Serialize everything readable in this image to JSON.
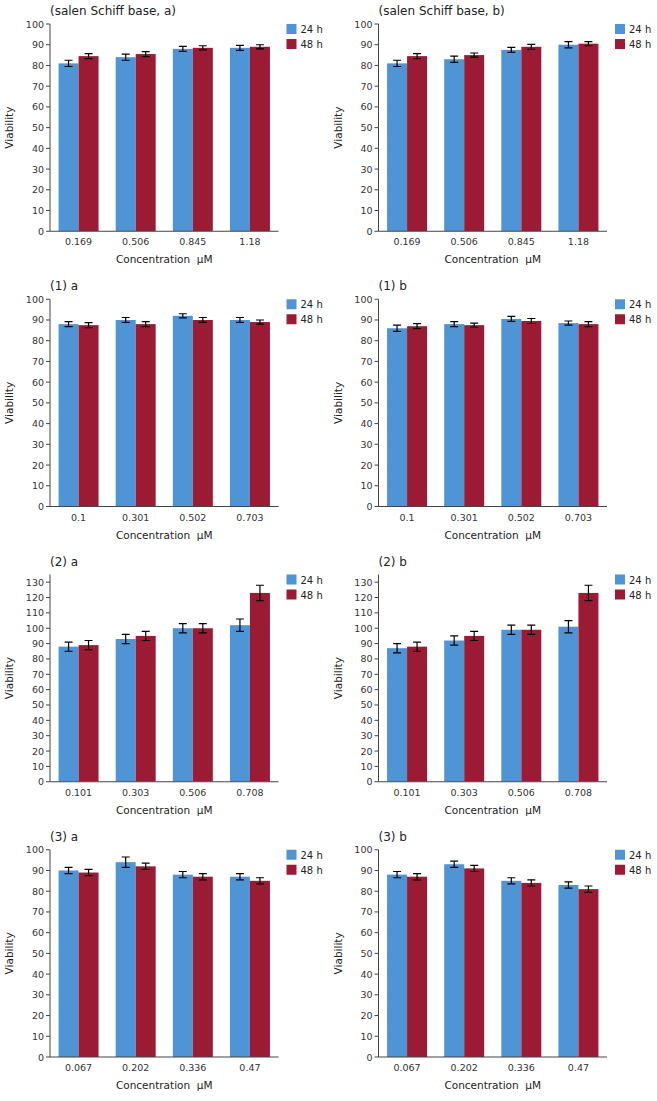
{
  "chart_data": [
    {
      "type": "bar",
      "title": "(salen Schiff base, a)",
      "categories": [
        "0.169",
        "0.506",
        "0.845",
        "1.18"
      ],
      "series": [
        {
          "name": "24 h",
          "color": "#4f94d4",
          "values": [
            81,
            84,
            88,
            88.5
          ],
          "errors": [
            1.5,
            1.5,
            1.2,
            1.2
          ]
        },
        {
          "name": "48 h",
          "color": "#9b1b34",
          "values": [
            84.5,
            85.5,
            88.5,
            89
          ],
          "errors": [
            1.2,
            1.2,
            1.0,
            1.0
          ]
        }
      ],
      "xlabel": "Concentration  μM",
      "ylabel": "Viability",
      "ylim": [
        0,
        100
      ],
      "yticks": [
        0,
        10,
        20,
        30,
        40,
        50,
        60,
        70,
        80,
        90,
        100
      ],
      "grid": false,
      "legend": "upper right"
    },
    {
      "type": "bar",
      "title": "(salen Schiff base, b)",
      "categories": [
        "0.169",
        "0.506",
        "0.845",
        "1.18"
      ],
      "series": [
        {
          "name": "24 h",
          "color": "#4f94d4",
          "values": [
            81,
            83,
            87.5,
            90
          ],
          "errors": [
            1.5,
            1.5,
            1.2,
            1.5
          ]
        },
        {
          "name": "48 h",
          "color": "#9b1b34",
          "values": [
            84.5,
            85,
            89,
            90.5
          ],
          "errors": [
            1.2,
            1.0,
            1.2,
            1.0
          ]
        }
      ],
      "xlabel": "Concentration  μM",
      "ylabel": "Viability",
      "ylim": [
        0,
        100
      ],
      "yticks": [
        0,
        10,
        20,
        30,
        40,
        50,
        60,
        70,
        80,
        90,
        100
      ],
      "grid": false,
      "legend": "upper right"
    },
    {
      "type": "bar",
      "title": "(1) a",
      "categories": [
        "0.1",
        "0.301",
        "0.502",
        "0.703"
      ],
      "series": [
        {
          "name": "24 h",
          "color": "#4f94d4",
          "values": [
            88,
            90,
            92,
            90
          ],
          "errors": [
            1.2,
            1.2,
            1.0,
            1.2
          ]
        },
        {
          "name": "48 h",
          "color": "#9b1b34",
          "values": [
            87.5,
            88,
            90,
            89
          ],
          "errors": [
            1.2,
            1.2,
            1.2,
            1.0
          ]
        }
      ],
      "xlabel": "Concentration  μM",
      "ylabel": "Viability",
      "ylim": [
        0,
        100
      ],
      "yticks": [
        0,
        10,
        20,
        30,
        40,
        50,
        60,
        70,
        80,
        90,
        100
      ],
      "grid": false,
      "legend": "upper right"
    },
    {
      "type": "bar",
      "title": "(1) b",
      "categories": [
        "0.1",
        "0.301",
        "0.502",
        "0.703"
      ],
      "series": [
        {
          "name": "24 h",
          "color": "#4f94d4",
          "values": [
            86,
            88,
            90.5,
            88.5
          ],
          "errors": [
            1.5,
            1.2,
            1.2,
            1.0
          ]
        },
        {
          "name": "48 h",
          "color": "#9b1b34",
          "values": [
            87,
            87.5,
            89.5,
            88
          ],
          "errors": [
            1.2,
            1.0,
            1.2,
            1.2
          ]
        }
      ],
      "xlabel": "Concentration  μM",
      "ylabel": "Viability",
      "ylim": [
        0,
        100
      ],
      "yticks": [
        0,
        10,
        20,
        30,
        40,
        50,
        60,
        70,
        80,
        90,
        100
      ],
      "grid": false,
      "legend": "upper right"
    },
    {
      "type": "bar",
      "title": "(2) a",
      "categories": [
        "0.101",
        "0.303",
        "0.506",
        "0.708"
      ],
      "series": [
        {
          "name": "24 h",
          "color": "#4f94d4",
          "values": [
            88,
            93,
            100,
            102
          ],
          "errors": [
            3.0,
            3.0,
            3.0,
            4.0
          ]
        },
        {
          "name": "48 h",
          "color": "#9b1b34",
          "values": [
            89,
            95,
            100,
            123
          ],
          "errors": [
            3.0,
            3.0,
            3.0,
            5.0
          ]
        }
      ],
      "xlabel": "Concentration  μM",
      "ylabel": "Viability",
      "ylim": [
        0,
        135
      ],
      "yticks": [
        0,
        10,
        20,
        30,
        40,
        50,
        60,
        70,
        80,
        90,
        100,
        110,
        120,
        130
      ],
      "grid": false,
      "legend": "upper right"
    },
    {
      "type": "bar",
      "title": "(2) b",
      "categories": [
        "0.101",
        "0.303",
        "0.506",
        "0.708"
      ],
      "series": [
        {
          "name": "24 h",
          "color": "#4f94d4",
          "values": [
            87,
            92,
            99,
            101
          ],
          "errors": [
            3.0,
            3.0,
            3.0,
            4.0
          ]
        },
        {
          "name": "48 h",
          "color": "#9b1b34",
          "values": [
            88,
            95,
            99,
            123
          ],
          "errors": [
            3.0,
            3.0,
            3.0,
            5.0
          ]
        }
      ],
      "xlabel": "Concentration  μM",
      "ylabel": "Viability",
      "ylim": [
        0,
        135
      ],
      "yticks": [
        0,
        10,
        20,
        30,
        40,
        50,
        60,
        70,
        80,
        90,
        100,
        110,
        120,
        130
      ],
      "grid": false,
      "legend": "upper right"
    },
    {
      "type": "bar",
      "title": "(3) a",
      "categories": [
        "0.067",
        "0.202",
        "0.336",
        "0.47"
      ],
      "series": [
        {
          "name": "24 h",
          "color": "#4f94d4",
          "values": [
            90,
            94,
            88,
            87
          ],
          "errors": [
            1.5,
            2.5,
            1.5,
            1.5
          ]
        },
        {
          "name": "48 h",
          "color": "#9b1b34",
          "values": [
            89,
            92,
            87,
            85
          ],
          "errors": [
            1.5,
            1.5,
            1.5,
            1.5
          ]
        }
      ],
      "xlabel": "Concentration  μM",
      "ylabel": "Viability",
      "ylim": [
        0,
        100
      ],
      "yticks": [
        0,
        10,
        20,
        30,
        40,
        50,
        60,
        70,
        80,
        90,
        100
      ],
      "grid": false,
      "legend": "upper right"
    },
    {
      "type": "bar",
      "title": "(3) b",
      "categories": [
        "0.067",
        "0.202",
        "0.336",
        "0.47"
      ],
      "series": [
        {
          "name": "24 h",
          "color": "#4f94d4",
          "values": [
            88,
            93,
            85,
            83
          ],
          "errors": [
            1.5,
            1.5,
            1.5,
            1.5
          ]
        },
        {
          "name": "48 h",
          "color": "#9b1b34",
          "values": [
            87,
            91,
            84,
            81
          ],
          "errors": [
            1.5,
            1.5,
            1.5,
            1.5
          ]
        }
      ],
      "xlabel": "Concentration  μM",
      "ylabel": "Viability",
      "ylim": [
        0,
        100
      ],
      "yticks": [
        0,
        10,
        20,
        30,
        40,
        50,
        60,
        70,
        80,
        90,
        100
      ],
      "grid": false,
      "legend": "upper right"
    }
  ]
}
